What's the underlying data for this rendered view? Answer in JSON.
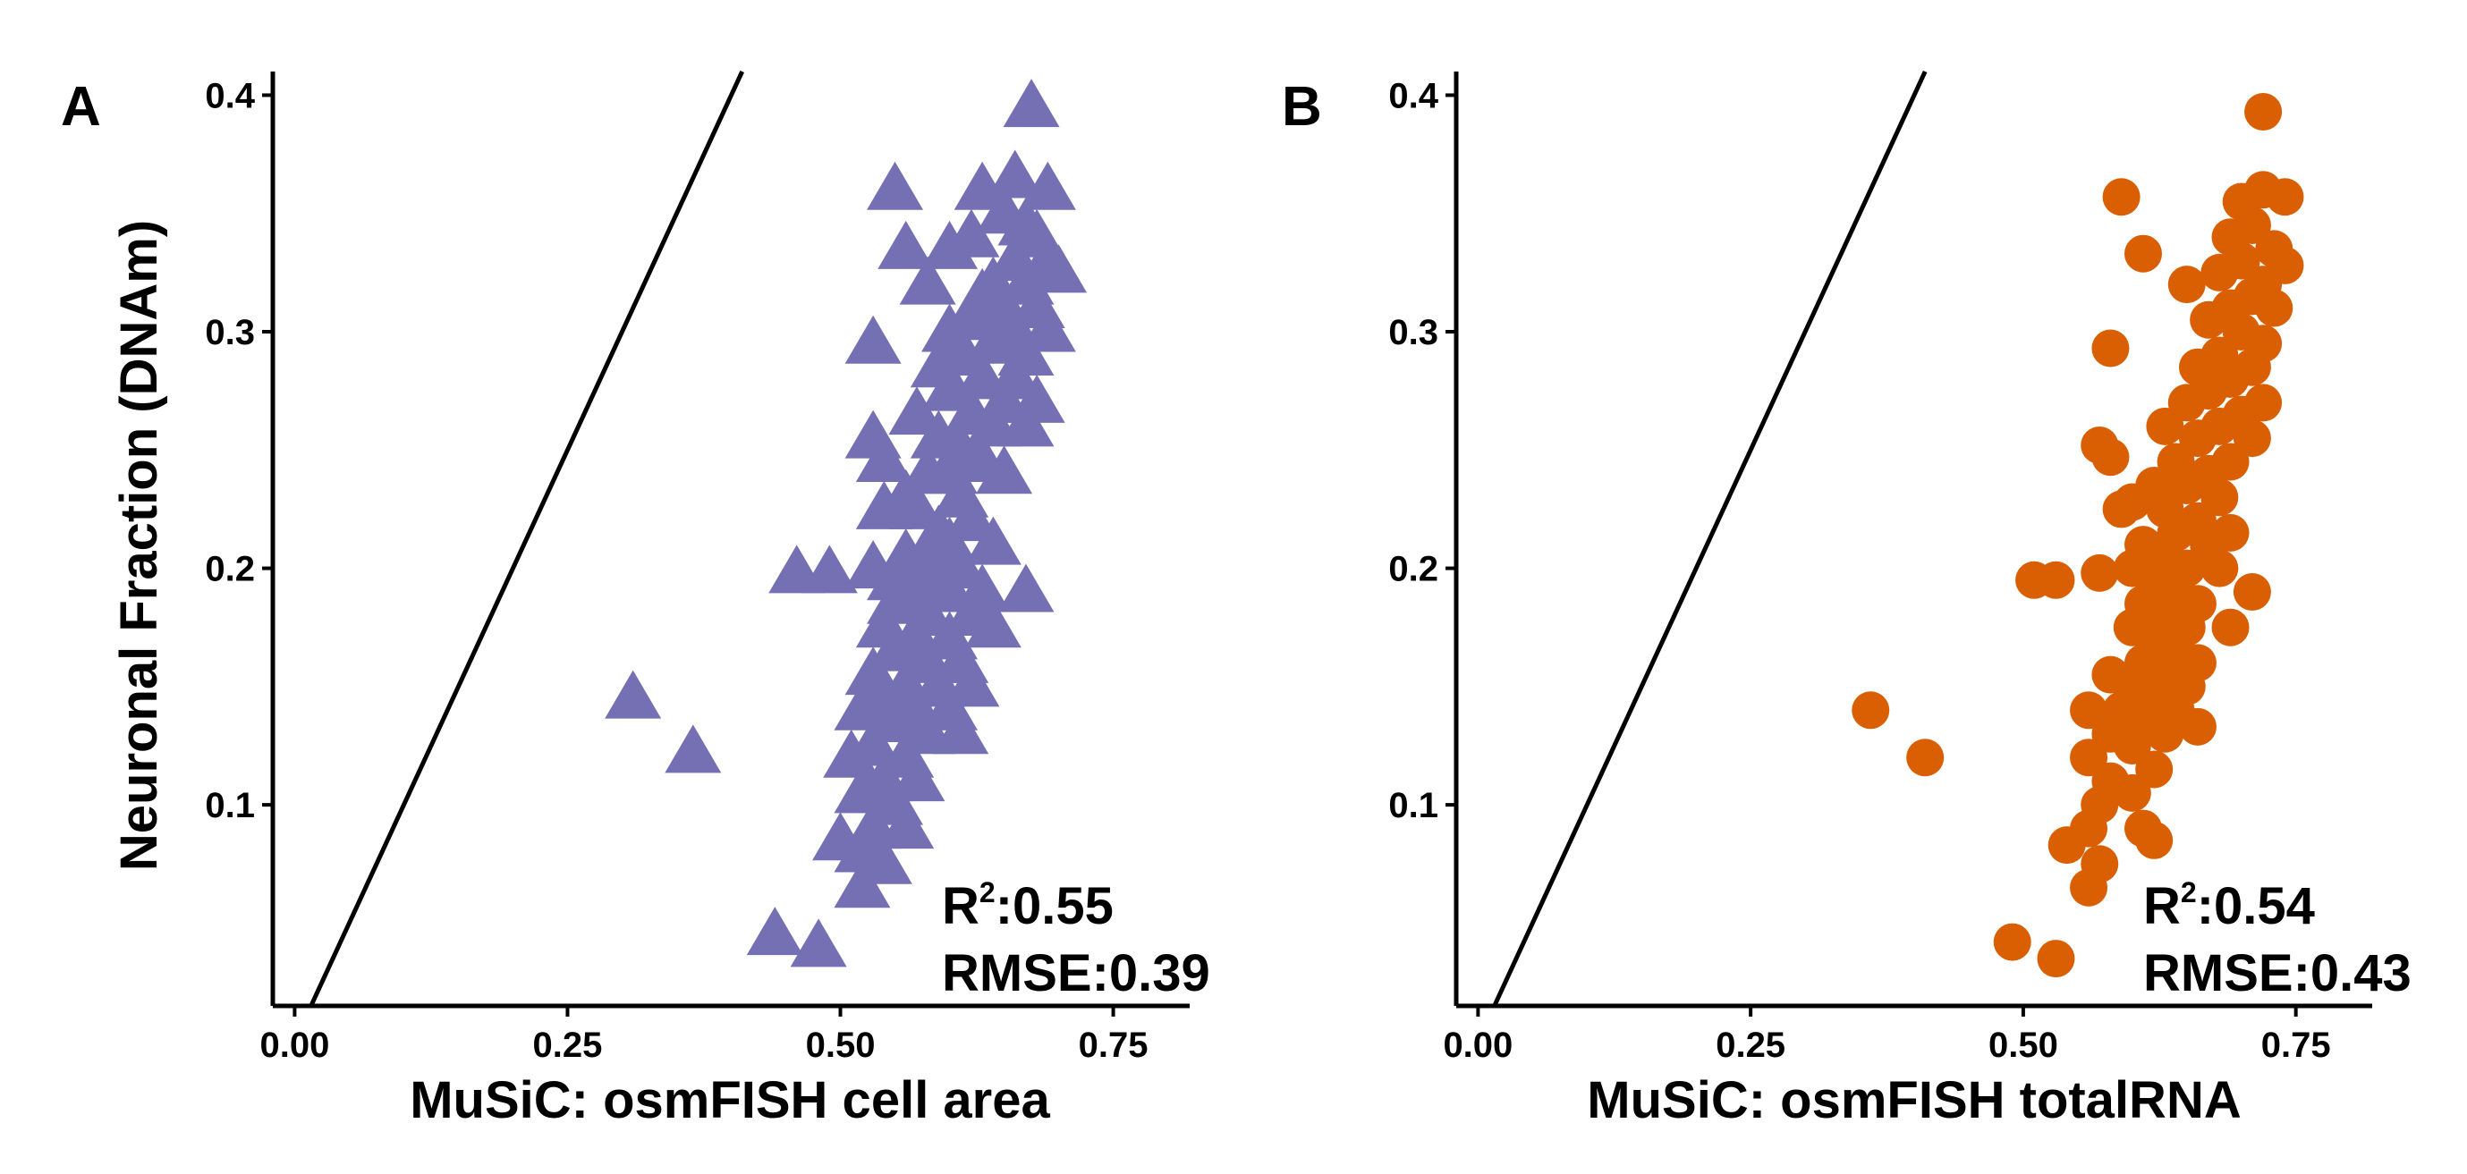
{
  "chart_data": [
    {
      "type": "scatter",
      "panel_label": "A",
      "xlabel": "MuSiC: osmFISH cell area",
      "ylabel": "Neuronal Fraction (DNAm)",
      "xlim": [
        -0.02,
        0.82
      ],
      "ylim": [
        0.015,
        0.41
      ],
      "x_ticks": [
        "0.00",
        "0.25",
        "0.50",
        "0.75"
      ],
      "y_ticks": [
        "0.1",
        "0.2",
        "0.3",
        "0.4"
      ],
      "marker": "triangle",
      "color": "#7570b3",
      "reference_line": "y = x",
      "annotation": {
        "r2_label": "R",
        "r2_sup": "2",
        "r2_value": ":0.55",
        "rmse": "RMSE:0.39"
      },
      "points": [
        [
          0.675,
          0.395
        ],
        [
          0.55,
          0.36
        ],
        [
          0.63,
          0.36
        ],
        [
          0.66,
          0.365
        ],
        [
          0.69,
          0.36
        ],
        [
          0.65,
          0.35
        ],
        [
          0.67,
          0.345
        ],
        [
          0.68,
          0.34
        ],
        [
          0.6,
          0.335
        ],
        [
          0.62,
          0.34
        ],
        [
          0.56,
          0.335
        ],
        [
          0.66,
          0.33
        ],
        [
          0.69,
          0.33
        ],
        [
          0.7,
          0.325
        ],
        [
          0.64,
          0.32
        ],
        [
          0.67,
          0.32
        ],
        [
          0.58,
          0.32
        ],
        [
          0.63,
          0.315
        ],
        [
          0.68,
          0.31
        ],
        [
          0.65,
          0.31
        ],
        [
          0.62,
          0.305
        ],
        [
          0.6,
          0.3
        ],
        [
          0.66,
          0.3
        ],
        [
          0.69,
          0.3
        ],
        [
          0.64,
          0.295
        ],
        [
          0.61,
          0.29
        ],
        [
          0.67,
          0.29
        ],
        [
          0.59,
          0.285
        ],
        [
          0.63,
          0.28
        ],
        [
          0.66,
          0.28
        ],
        [
          0.53,
          0.295
        ],
        [
          0.6,
          0.275
        ],
        [
          0.65,
          0.27
        ],
        [
          0.68,
          0.27
        ],
        [
          0.57,
          0.265
        ],
        [
          0.62,
          0.265
        ],
        [
          0.64,
          0.26
        ],
        [
          0.67,
          0.26
        ],
        [
          0.59,
          0.255
        ],
        [
          0.61,
          0.25
        ],
        [
          0.53,
          0.255
        ],
        [
          0.54,
          0.245
        ],
        [
          0.63,
          0.245
        ],
        [
          0.58,
          0.24
        ],
        [
          0.6,
          0.24
        ],
        [
          0.65,
          0.24
        ],
        [
          0.56,
          0.23
        ],
        [
          0.61,
          0.23
        ],
        [
          0.57,
          0.225
        ],
        [
          0.62,
          0.22
        ],
        [
          0.54,
          0.225
        ],
        [
          0.59,
          0.215
        ],
        [
          0.6,
          0.21
        ],
        [
          0.64,
          0.21
        ],
        [
          0.56,
          0.205
        ],
        [
          0.58,
          0.2
        ],
        [
          0.61,
          0.2
        ],
        [
          0.53,
          0.2
        ],
        [
          0.55,
          0.195
        ],
        [
          0.59,
          0.195
        ],
        [
          0.46,
          0.198
        ],
        [
          0.49,
          0.198
        ],
        [
          0.57,
          0.19
        ],
        [
          0.6,
          0.19
        ],
        [
          0.63,
          0.19
        ],
        [
          0.67,
          0.19
        ],
        [
          0.55,
          0.185
        ],
        [
          0.58,
          0.18
        ],
        [
          0.62,
          0.18
        ],
        [
          0.54,
          0.175
        ],
        [
          0.57,
          0.17
        ],
        [
          0.6,
          0.17
        ],
        [
          0.64,
          0.175
        ],
        [
          0.55,
          0.165
        ],
        [
          0.58,
          0.16
        ],
        [
          0.61,
          0.16
        ],
        [
          0.53,
          0.155
        ],
        [
          0.56,
          0.15
        ],
        [
          0.59,
          0.15
        ],
        [
          0.62,
          0.15
        ],
        [
          0.54,
          0.145
        ],
        [
          0.57,
          0.14
        ],
        [
          0.6,
          0.14
        ],
        [
          0.52,
          0.14
        ],
        [
          0.55,
          0.135
        ],
        [
          0.58,
          0.13
        ],
        [
          0.61,
          0.13
        ],
        [
          0.53,
          0.125
        ],
        [
          0.56,
          0.12
        ],
        [
          0.51,
          0.12
        ],
        [
          0.54,
          0.11
        ],
        [
          0.57,
          0.11
        ],
        [
          0.52,
          0.105
        ],
        [
          0.55,
          0.1
        ],
        [
          0.53,
          0.09
        ],
        [
          0.56,
          0.09
        ],
        [
          0.5,
          0.085
        ],
        [
          0.52,
          0.08
        ],
        [
          0.54,
          0.075
        ],
        [
          0.52,
          0.065
        ],
        [
          0.44,
          0.045
        ],
        [
          0.48,
          0.04
        ],
        [
          0.31,
          0.145
        ],
        [
          0.365,
          0.122
        ]
      ]
    },
    {
      "type": "scatter",
      "panel_label": "B",
      "xlabel": "MuSiC: osmFISH totalRNA",
      "ylabel": "",
      "xlim": [
        -0.02,
        0.82
      ],
      "ylim": [
        0.015,
        0.41
      ],
      "x_ticks": [
        "0.00",
        "0.25",
        "0.50",
        "0.75"
      ],
      "y_ticks": [
        "0.1",
        "0.2",
        "0.3",
        "0.4"
      ],
      "marker": "circle",
      "color": "#d95f02",
      "reference_line": "y = x",
      "annotation": {
        "r2_label": "R",
        "r2_sup": "2",
        "r2_value": ":0.54",
        "rmse": "RMSE:0.43"
      },
      "points": [
        [
          0.72,
          0.393
        ],
        [
          0.59,
          0.357
        ],
        [
          0.72,
          0.36
        ],
        [
          0.74,
          0.357
        ],
        [
          0.7,
          0.355
        ],
        [
          0.71,
          0.345
        ],
        [
          0.69,
          0.34
        ],
        [
          0.73,
          0.335
        ],
        [
          0.61,
          0.333
        ],
        [
          0.7,
          0.33
        ],
        [
          0.74,
          0.328
        ],
        [
          0.68,
          0.325
        ],
        [
          0.72,
          0.32
        ],
        [
          0.65,
          0.32
        ],
        [
          0.71,
          0.315
        ],
        [
          0.69,
          0.31
        ],
        [
          0.73,
          0.31
        ],
        [
          0.67,
          0.305
        ],
        [
          0.7,
          0.3
        ],
        [
          0.72,
          0.295
        ],
        [
          0.68,
          0.29
        ],
        [
          0.58,
          0.293
        ],
        [
          0.66,
          0.285
        ],
        [
          0.71,
          0.285
        ],
        [
          0.69,
          0.28
        ],
        [
          0.67,
          0.275
        ],
        [
          0.72,
          0.27
        ],
        [
          0.65,
          0.27
        ],
        [
          0.7,
          0.265
        ],
        [
          0.68,
          0.26
        ],
        [
          0.63,
          0.26
        ],
        [
          0.66,
          0.255
        ],
        [
          0.57,
          0.252
        ],
        [
          0.58,
          0.247
        ],
        [
          0.71,
          0.255
        ],
        [
          0.64,
          0.245
        ],
        [
          0.69,
          0.245
        ],
        [
          0.67,
          0.24
        ],
        [
          0.62,
          0.235
        ],
        [
          0.65,
          0.235
        ],
        [
          0.68,
          0.23
        ],
        [
          0.6,
          0.228
        ],
        [
          0.59,
          0.225
        ],
        [
          0.63,
          0.225
        ],
        [
          0.66,
          0.22
        ],
        [
          0.69,
          0.215
        ],
        [
          0.64,
          0.215
        ],
        [
          0.61,
          0.21
        ],
        [
          0.67,
          0.21
        ],
        [
          0.63,
          0.205
        ],
        [
          0.65,
          0.2
        ],
        [
          0.6,
          0.2
        ],
        [
          0.68,
          0.2
        ],
        [
          0.62,
          0.195
        ],
        [
          0.51,
          0.195
        ],
        [
          0.53,
          0.195
        ],
        [
          0.57,
          0.198
        ],
        [
          0.64,
          0.19
        ],
        [
          0.71,
          0.19
        ],
        [
          0.66,
          0.185
        ],
        [
          0.61,
          0.185
        ],
        [
          0.63,
          0.18
        ],
        [
          0.6,
          0.175
        ],
        [
          0.65,
          0.175
        ],
        [
          0.69,
          0.175
        ],
        [
          0.62,
          0.17
        ],
        [
          0.64,
          0.165
        ],
        [
          0.61,
          0.16
        ],
        [
          0.66,
          0.16
        ],
        [
          0.63,
          0.155
        ],
        [
          0.58,
          0.155
        ],
        [
          0.6,
          0.15
        ],
        [
          0.65,
          0.15
        ],
        [
          0.62,
          0.145
        ],
        [
          0.59,
          0.14
        ],
        [
          0.64,
          0.14
        ],
        [
          0.56,
          0.14
        ],
        [
          0.61,
          0.135
        ],
        [
          0.66,
          0.133
        ],
        [
          0.58,
          0.13
        ],
        [
          0.63,
          0.13
        ],
        [
          0.6,
          0.125
        ],
        [
          0.56,
          0.12
        ],
        [
          0.62,
          0.115
        ],
        [
          0.58,
          0.11
        ],
        [
          0.6,
          0.105
        ],
        [
          0.57,
          0.1
        ],
        [
          0.61,
          0.09
        ],
        [
          0.56,
          0.09
        ],
        [
          0.62,
          0.085
        ],
        [
          0.54,
          0.083
        ],
        [
          0.57,
          0.075
        ],
        [
          0.56,
          0.065
        ],
        [
          0.49,
          0.042
        ],
        [
          0.53,
          0.035
        ],
        [
          0.36,
          0.14
        ],
        [
          0.41,
          0.12
        ]
      ]
    }
  ]
}
